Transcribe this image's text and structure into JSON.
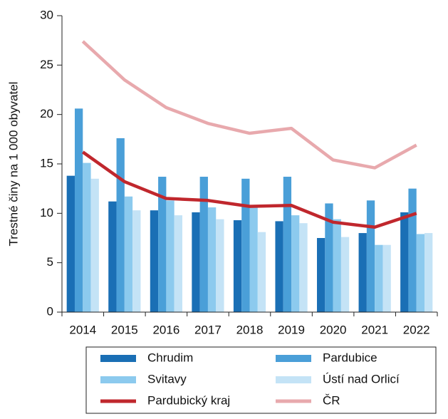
{
  "chart_data": {
    "type": "bar",
    "ylabel": "Trestné činy na 1 000 obyvatel",
    "categories": [
      "2014",
      "2015",
      "2016",
      "2017",
      "2018",
      "2019",
      "2020",
      "2021",
      "2022"
    ],
    "series": [
      {
        "name": "Chrudim",
        "type": "bar",
        "color": "#1a6fb5",
        "values": [
          13.8,
          11.2,
          10.3,
          10.1,
          9.3,
          9.2,
          7.5,
          8.0,
          10.1
        ]
      },
      {
        "name": "Pardubice",
        "type": "bar",
        "color": "#4a9fd8",
        "values": [
          20.6,
          17.6,
          13.7,
          13.7,
          13.5,
          13.7,
          11.0,
          11.3,
          12.5
        ]
      },
      {
        "name": "Svitavy",
        "type": "bar",
        "color": "#8ccaee",
        "values": [
          15.1,
          11.7,
          11.3,
          10.6,
          10.8,
          9.8,
          9.4,
          6.8,
          7.9
        ]
      },
      {
        "name": "Ústí nad Orlicí",
        "type": "bar",
        "color": "#c4e3f6",
        "values": [
          13.5,
          10.3,
          9.8,
          9.4,
          8.1,
          9.0,
          7.6,
          6.8,
          8.0
        ]
      },
      {
        "name": "Pardubický kraj",
        "type": "line",
        "color": "#c0272d",
        "values": [
          16.2,
          13.2,
          11.5,
          11.3,
          10.7,
          10.8,
          9.1,
          8.6,
          10.0
        ]
      },
      {
        "name": "ČR",
        "type": "line",
        "color": "#e8a9ad",
        "values": [
          27.4,
          23.5,
          20.7,
          19.1,
          18.1,
          18.6,
          15.4,
          14.6,
          16.9
        ]
      }
    ],
    "ylim": [
      0,
      30
    ],
    "yticks": [
      0,
      5,
      10,
      15,
      20,
      25,
      30
    ],
    "legend": "bottom"
  }
}
